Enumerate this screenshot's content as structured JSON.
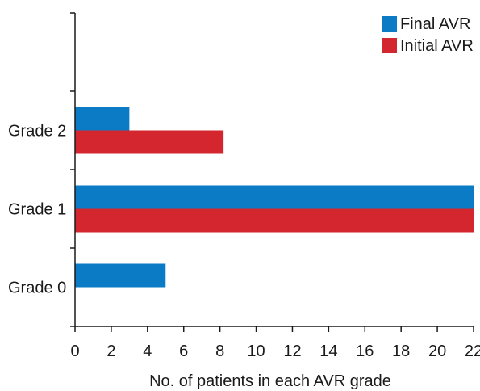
{
  "chart_data": {
    "type": "bar",
    "orientation": "horizontal",
    "categories": [
      "Grade 2",
      "Grade 1",
      "Grade 0"
    ],
    "series": [
      {
        "name": "Final AVR",
        "color": "#0a7bc4",
        "values": [
          3,
          22,
          5
        ]
      },
      {
        "name": "Initial AVR",
        "color": "#d3262e",
        "values": [
          8.2,
          22,
          0
        ]
      }
    ],
    "xlabel": "No. of patients in each AVR grade",
    "ylabel": "",
    "xlim": [
      0,
      22
    ],
    "xticks": [
      0,
      2,
      4,
      6,
      8,
      10,
      12,
      14,
      16,
      18,
      20,
      22
    ],
    "grid": false,
    "legend_position": "top-right"
  }
}
